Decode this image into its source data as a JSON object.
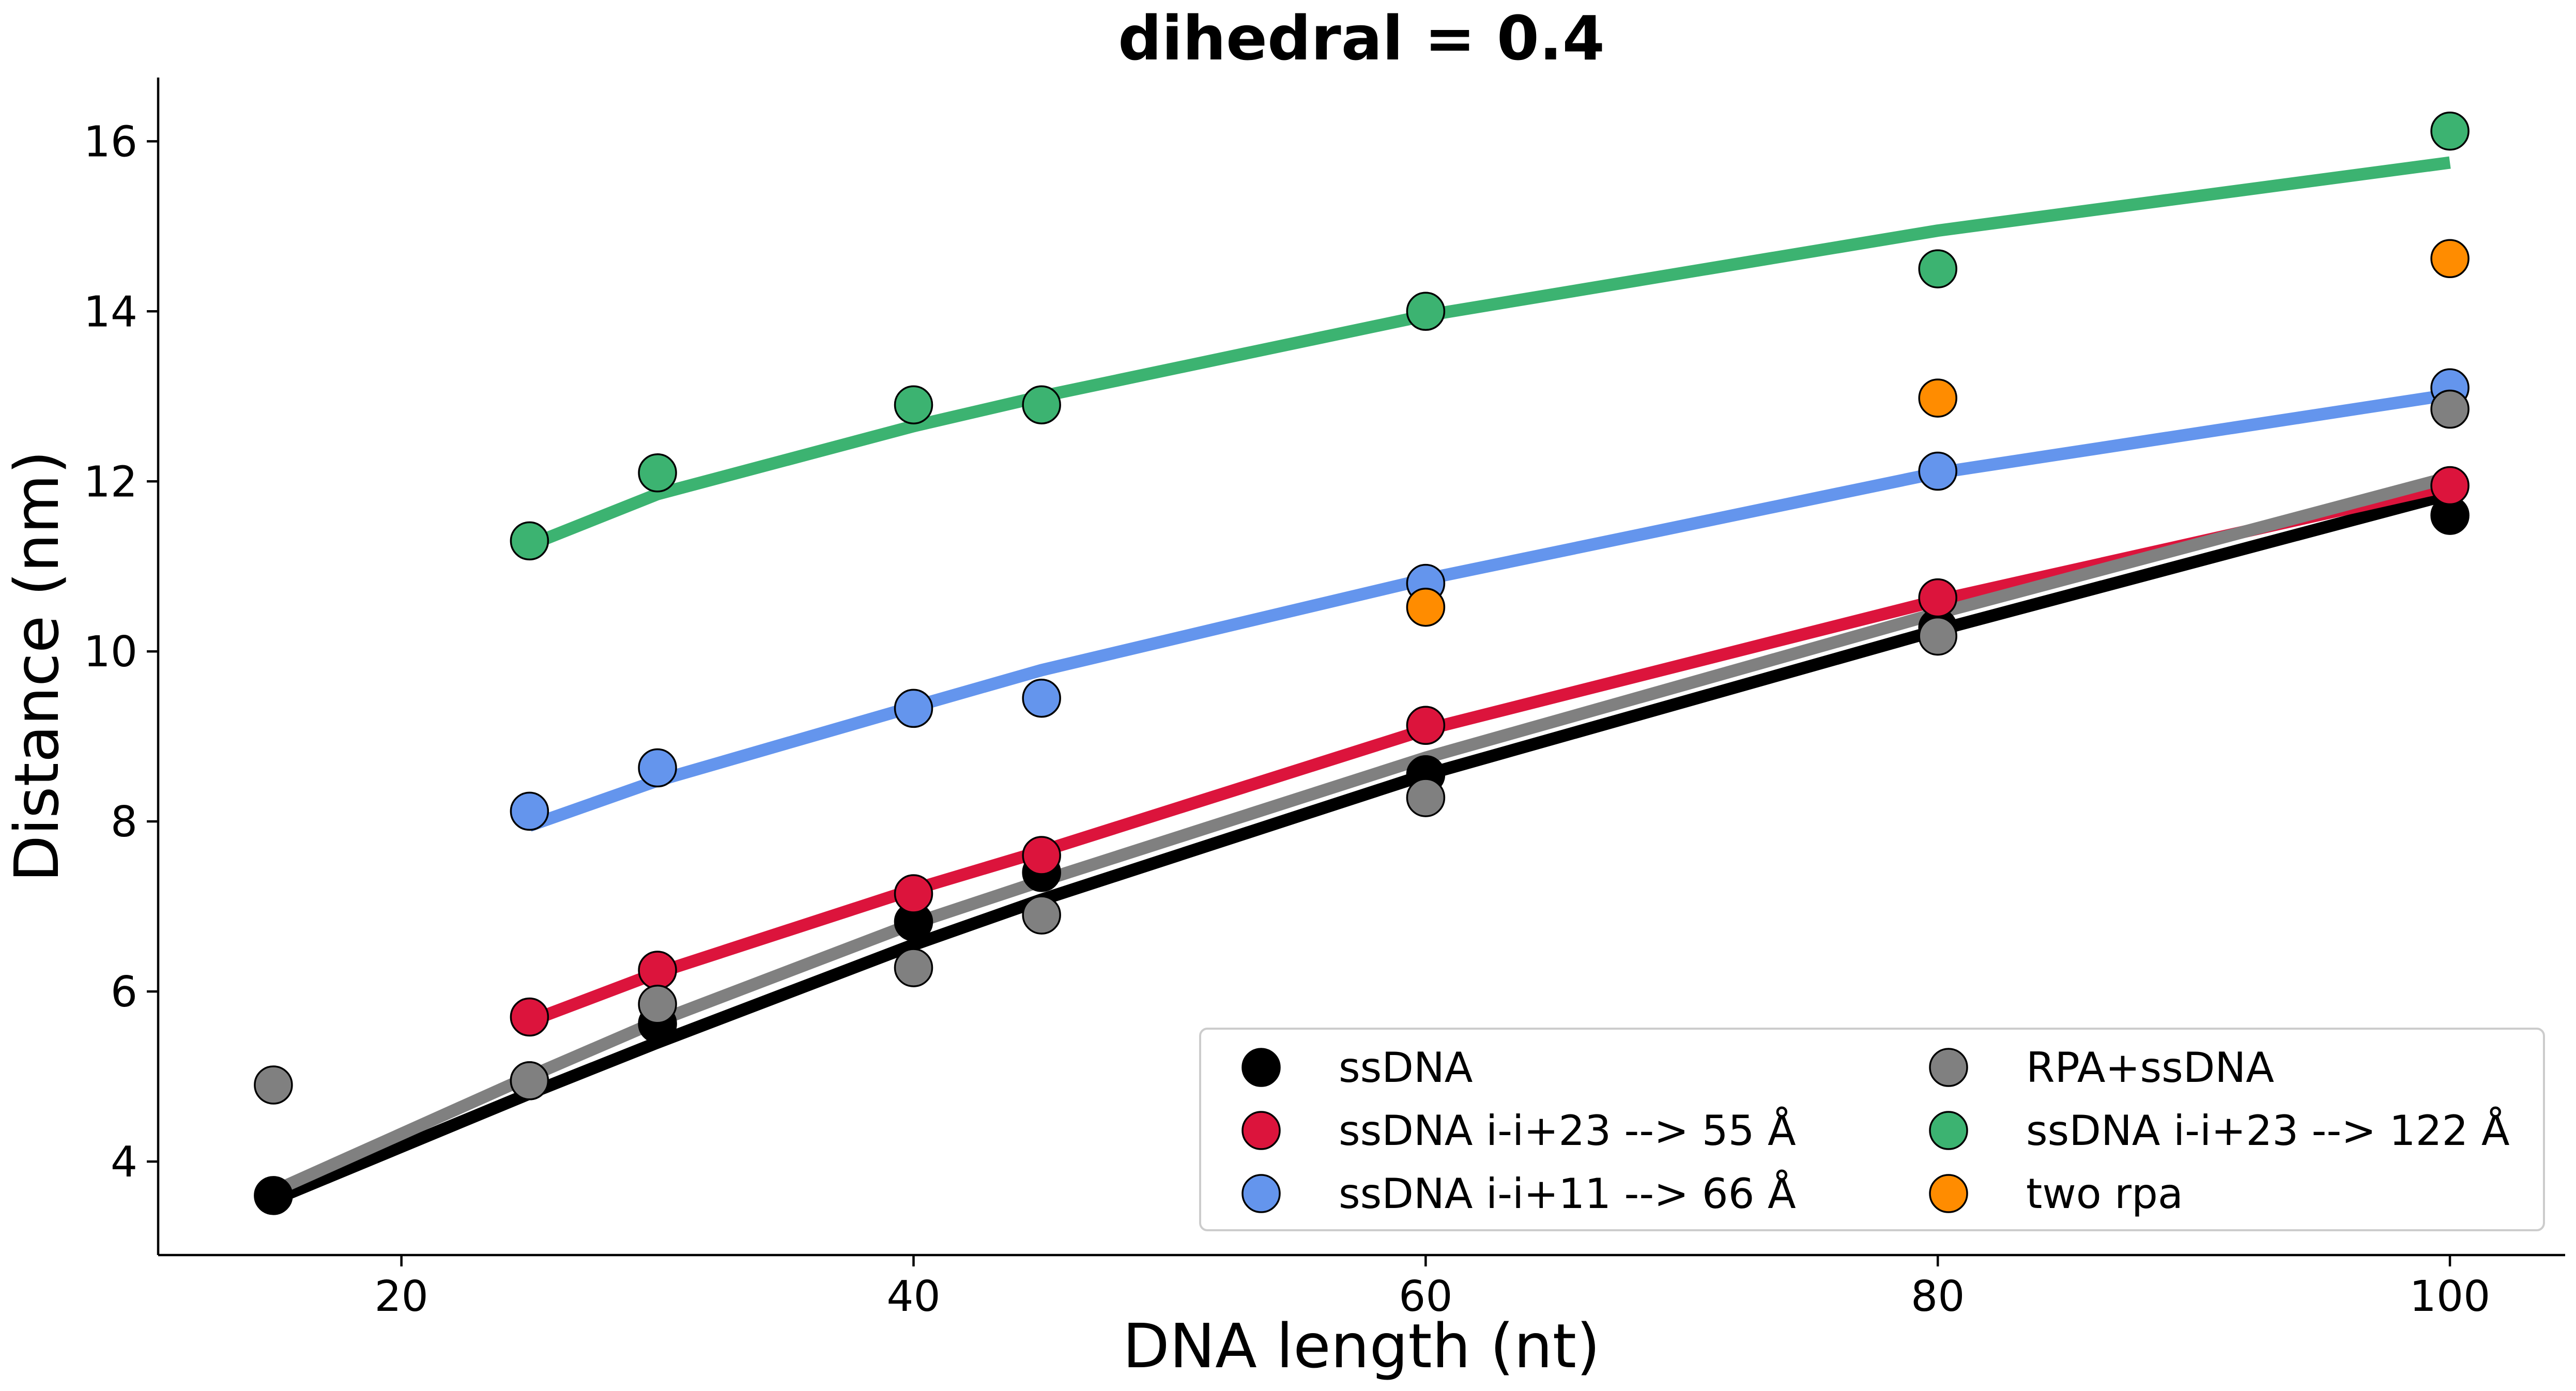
{
  "chart_data": {
    "type": "line",
    "title": "dihedral = 0.4",
    "xlabel": "DNA length (nt)",
    "ylabel": "Distance (nm)",
    "xlim": [
      10.5,
      104.5
    ],
    "ylim": [
      2.9,
      16.75
    ],
    "xticks": [
      20,
      40,
      60,
      80,
      100
    ],
    "yticks": [
      4,
      6,
      8,
      10,
      12,
      14,
      16
    ],
    "grid": false,
    "legend_position": "lower-right",
    "legend_columns": 2,
    "series": [
      {
        "name": "ssDNA",
        "color": "#000000",
        "x": [
          15,
          25,
          30,
          40,
          45,
          60,
          80,
          100
        ],
        "y": [
          3.6,
          4.95,
          5.62,
          6.82,
          7.4,
          8.55,
          10.28,
          11.6
        ],
        "fit_x": [
          15,
          25,
          30,
          40,
          45,
          60,
          80,
          100
        ],
        "fit_y": [
          3.55,
          4.8,
          5.4,
          6.55,
          7.08,
          8.55,
          10.25,
          11.85
        ]
      },
      {
        "name": "ssDNA i-i+23 --> 55 Å",
        "color": "#dc143c",
        "x": [
          25,
          30,
          40,
          45,
          60,
          80,
          100
        ],
        "y": [
          5.7,
          6.25,
          7.15,
          7.6,
          9.13,
          10.63,
          11.95
        ],
        "fit_x": [
          25,
          30,
          40,
          45,
          60,
          80,
          100
        ],
        "fit_y": [
          5.65,
          6.22,
          7.2,
          7.65,
          9.08,
          10.6,
          11.95
        ]
      },
      {
        "name": "ssDNA i-i+11 --> 66 Å",
        "color": "#6495ed",
        "x": [
          25,
          30,
          40,
          45,
          60,
          80,
          100
        ],
        "y": [
          8.12,
          8.63,
          9.33,
          9.45,
          10.8,
          12.12,
          13.1
        ],
        "fit_x": [
          25,
          30,
          40,
          45,
          60,
          80,
          100
        ],
        "fit_y": [
          7.95,
          8.48,
          9.35,
          9.78,
          10.85,
          12.1,
          13.02
        ]
      },
      {
        "name": "RPA+ssDNA",
        "color": "#808080",
        "x": [
          15,
          25,
          30,
          40,
          45,
          60,
          80,
          100
        ],
        "y": [
          4.9,
          4.95,
          5.85,
          6.28,
          6.9,
          8.28,
          10.18,
          12.85
        ],
        "fit_x": [
          15,
          25,
          30,
          40,
          45,
          60,
          80,
          100
        ],
        "fit_y": [
          3.65,
          5.0,
          5.65,
          6.8,
          7.3,
          8.75,
          10.45,
          12.05
        ]
      },
      {
        "name": "ssDNA i-i+23 --> 122 Å",
        "color": "#3cb371",
        "x": [
          25,
          30,
          40,
          45,
          60,
          80,
          100
        ],
        "y": [
          11.3,
          12.1,
          12.9,
          12.9,
          14.0,
          14.5,
          16.12
        ],
        "fit_x": [
          25,
          30,
          40,
          45,
          60,
          80,
          100
        ],
        "fit_y": [
          11.25,
          11.85,
          12.65,
          13.0,
          13.95,
          14.95,
          15.75
        ]
      },
      {
        "name": "two rpa",
        "color": "#ff8c00",
        "x": [
          60,
          80,
          100
        ],
        "y": [
          10.52,
          12.98,
          14.62
        ]
      }
    ]
  }
}
